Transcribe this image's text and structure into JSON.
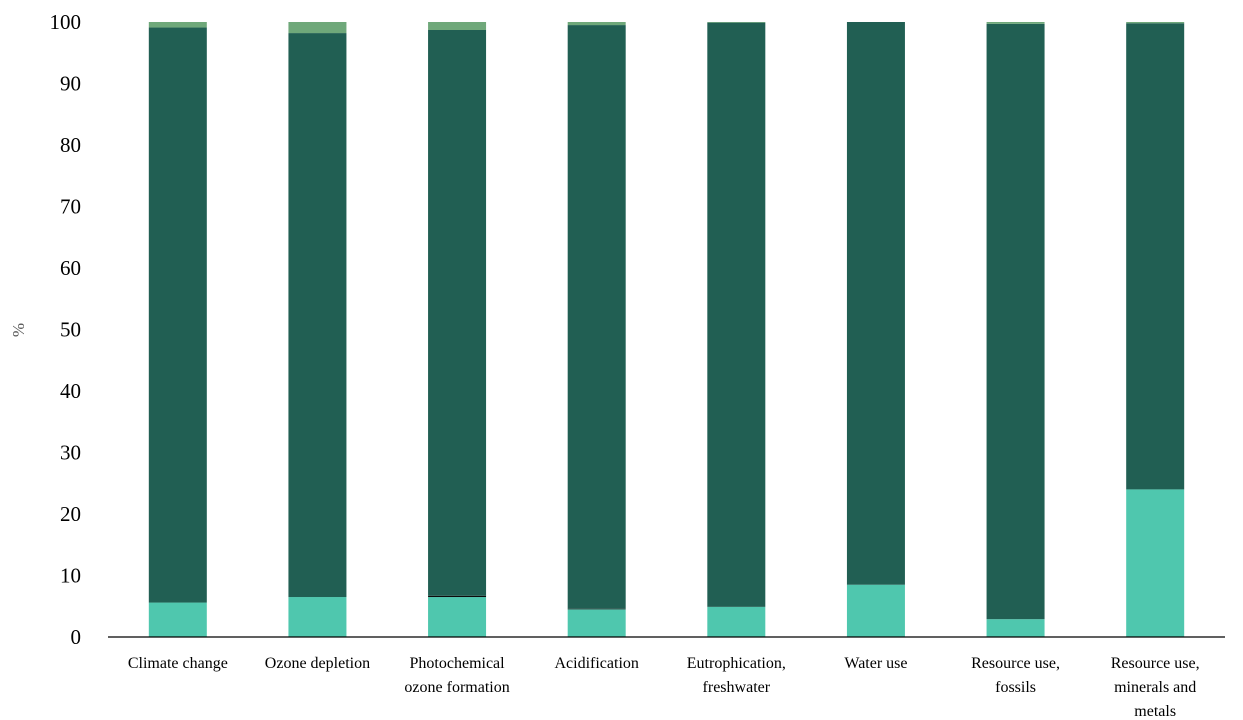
{
  "chart_data": {
    "type": "bar",
    "stacked": true,
    "ylabel": "%",
    "ylim": [
      0,
      100
    ],
    "yticks": [
      0,
      10,
      20,
      30,
      40,
      50,
      60,
      70,
      80,
      90,
      100
    ],
    "grid": false,
    "categories": [
      [
        "Climate change"
      ],
      [
        "Ozone depletion"
      ],
      [
        "Photochemical",
        "ozone formation"
      ],
      [
        "Acidification"
      ],
      [
        "Eutrophication,",
        "freshwater"
      ],
      [
        "Water use"
      ],
      [
        "Resource use,",
        "fossils"
      ],
      [
        "Resource use,",
        "minerals and",
        "metals"
      ]
    ],
    "series": [
      {
        "color": "#4fc7ae",
        "values": [
          5.6,
          6.5,
          6.5,
          4.5,
          4.9,
          8.5,
          2.9,
          24.0
        ]
      },
      {
        "color": "#0b0b0b",
        "values": [
          0.0,
          0.0,
          0.2,
          0.1,
          0.0,
          0.0,
          0.0,
          0.0
        ]
      },
      {
        "color": "#215f53",
        "values": [
          93.5,
          91.7,
          92.0,
          94.9,
          95.0,
          91.5,
          96.8,
          75.8
        ]
      },
      {
        "color": "#6fa87a",
        "values": [
          0.9,
          1.8,
          1.3,
          0.5,
          0.1,
          0.0,
          0.3,
          0.2
        ]
      }
    ]
  }
}
